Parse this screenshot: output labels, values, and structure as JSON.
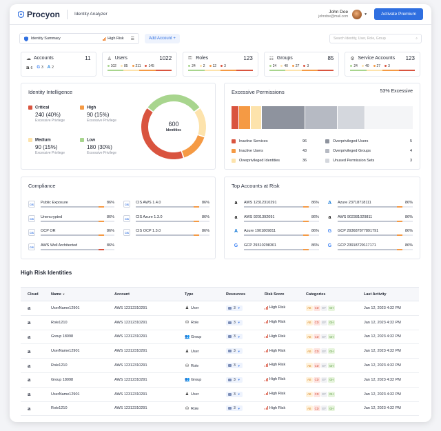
{
  "app": {
    "logo_text": "Procyon",
    "title": "Identity Analyzer"
  },
  "user": {
    "name": "John Doe",
    "email": "johndoe@mail.com"
  },
  "header": {
    "cta_label": "Activate Premium"
  },
  "filters": {
    "summary_label": "Identity Summary",
    "risk_label": "High Risk",
    "add_account_label": "Add Account",
    "add_account_plus": "+",
    "search_placeholder": "Search Identity, User, Role, Group"
  },
  "colors": {
    "critical": "#d9543f",
    "high": "#f59a44",
    "medium": "#fde3ac",
    "low": "#a8d58e",
    "accent": "#2f6fe0"
  },
  "summary_cards": {
    "accounts": {
      "label": "Accounts",
      "count": "11",
      "aws": "6",
      "gcp": "3",
      "azure": "2"
    },
    "users": {
      "label": "Users",
      "count": "1022",
      "values": [
        "102",
        "85",
        "211",
        "145"
      ]
    },
    "roles": {
      "label": "Roles",
      "count": "123",
      "values": [
        "24",
        "2",
        "12",
        "3"
      ]
    },
    "groups": {
      "label": "Groups",
      "count": "85",
      "values": [
        "24",
        "40",
        "27",
        "3"
      ]
    },
    "service_accounts": {
      "label": "Service Accounts",
      "count": "123",
      "values": [
        "24",
        "40",
        "27",
        "3"
      ]
    }
  },
  "identity_intelligence": {
    "title": "Identity Intelligence",
    "total": "600",
    "total_label": "Identities",
    "sublabel": "Excessive Privilege",
    "levels": [
      {
        "label": "Critical",
        "value": "240 (40%)",
        "count": 240
      },
      {
        "label": "High",
        "value": "90 (15%)",
        "count": 90
      },
      {
        "label": "Medium",
        "value": "90 (15%)",
        "count": 90
      },
      {
        "label": "Low",
        "value": "180 (30%)",
        "count": 180
      }
    ]
  },
  "excessive_permissions": {
    "title": "Excessive Permissions",
    "percent": "53% Excessive",
    "bar_segments": [
      {
        "name": "Inactive Services",
        "share": 0.04,
        "color": "#d9543f"
      },
      {
        "name": "Inactive Users",
        "share": 0.06,
        "color": "#f59a44"
      },
      {
        "name": "Overprivileged Identities",
        "share": 0.06,
        "color": "#fde3ac"
      },
      {
        "name": "Overprivileged Users",
        "share": 0.24,
        "color": "#8e939e"
      },
      {
        "name": "Overprivileged Groups",
        "share": 0.18,
        "color": "#b6bac3"
      },
      {
        "name": "Unused Permission Sets",
        "share": 0.15,
        "color": "#d4d7dd"
      },
      {
        "name": "rest",
        "share": 0.27,
        "color": "#f4f5f7"
      }
    ],
    "items": [
      {
        "label": "Inactive Services",
        "value": "96"
      },
      {
        "label": "Inactive Users",
        "value": "43"
      },
      {
        "label": "Overprivileged Identities",
        "value": "36"
      },
      {
        "label": "Overprivileged Users",
        "value": "5"
      },
      {
        "label": "Overprivileged Groups",
        "value": "4"
      },
      {
        "label": "Unused Permission Sets",
        "value": "3"
      }
    ]
  },
  "compliance": {
    "title": "Compliance",
    "badge": "CIS",
    "items": [
      {
        "name": "Public Exposure",
        "pct": "86%",
        "flag": "#f59a44"
      },
      {
        "name": "CIS AWS 1.4.0",
        "pct": "86%",
        "flag": "#f59a44"
      },
      {
        "name": "Unencrypted",
        "pct": "86%",
        "flag": "#f59a44"
      },
      {
        "name": "CIS Azure 1.3.0",
        "pct": "86%",
        "flag": "#f59a44"
      },
      {
        "name": "OCP OR",
        "pct": "86%",
        "flag": "#f59a44"
      },
      {
        "name": "CIS OCP 1.3.0",
        "pct": "86%",
        "flag": "#f59a44"
      },
      {
        "name": "AWS Well Architected",
        "pct": "86%",
        "flag": "#d9543f"
      }
    ]
  },
  "top_accounts": {
    "title": "Top Accounts at Risk",
    "items": [
      {
        "name": "AWS 12312310291",
        "pct": "86%",
        "cloud": "aws"
      },
      {
        "name": "Azure 23718718111",
        "pct": "86%",
        "cloud": "azure"
      },
      {
        "name": "AWS 9201392091",
        "pct": "86%",
        "cloud": "aws"
      },
      {
        "name": "AWS 902381029811",
        "pct": "86%",
        "cloud": "aws"
      },
      {
        "name": "Azure 1901809811",
        "pct": "86%",
        "cloud": "azure"
      },
      {
        "name": "GCP 293687877891791",
        "pct": "86%",
        "cloud": "gcp"
      },
      {
        "name": "GCP 29310298301",
        "pct": "86%",
        "cloud": "gcp"
      },
      {
        "name": "GCP 23918729117171",
        "pct": "86%",
        "cloud": "gcp"
      }
    ]
  },
  "high_risk": {
    "title": "High Risk Identities",
    "columns": [
      "Cloud",
      "Name",
      "Account",
      "Type",
      "Resources",
      "Risk Score",
      "Categories",
      "Last Activity"
    ],
    "rows": [
      {
        "name": "UserName12901",
        "account": "AWS 12312310291",
        "type": "User",
        "resources": "3",
        "risk": "High Risk",
        "activity": "Jan 12, 2023 4:32 PM"
      },
      {
        "name": "Role1210",
        "account": "AWS 12312310291",
        "type": "Role",
        "resources": "3",
        "risk": "High Risk",
        "activity": "Jan 12, 2023 4:32 PM"
      },
      {
        "name": "Group 18098",
        "account": "AWS 12312310291",
        "type": "Group",
        "resources": "3",
        "risk": "High Risk",
        "activity": "Jan 12, 2023 4:32 PM"
      },
      {
        "name": "UserName12901",
        "account": "AWS 12312310291",
        "type": "User",
        "resources": "3",
        "risk": "High Risk",
        "activity": "Jan 12, 2023 4:32 PM"
      },
      {
        "name": "Role1210",
        "account": "AWS 12312310291",
        "type": "Role",
        "resources": "3",
        "risk": "High Risk",
        "activity": "Jan 12, 2023 4:32 PM"
      },
      {
        "name": "Group 18098",
        "account": "AWS 12312310291",
        "type": "Group",
        "resources": "3",
        "risk": "High Risk",
        "activity": "Jan 12, 2023 4:32 PM"
      },
      {
        "name": "UserName12901",
        "account": "AWS 12312310291",
        "type": "User",
        "resources": "3",
        "risk": "High Risk",
        "activity": "Jan 12, 2023 4:32 PM"
      },
      {
        "name": "Role1210",
        "account": "AWS 12312310291",
        "type": "Role",
        "resources": "3",
        "risk": "High Risk",
        "activity": "Jan 12, 2023 4:32 PM"
      }
    ],
    "categories": [
      "AB",
      "CD",
      "EF",
      "GH"
    ]
  }
}
